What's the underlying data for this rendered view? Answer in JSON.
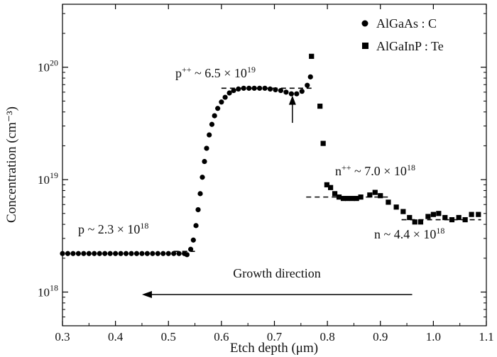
{
  "chart_data": {
    "type": "scatter",
    "title": "",
    "xlabel": "Etch depth (μm)",
    "ylabel": "Concentration (cm⁻³)",
    "xlim": [
      0.3,
      1.1
    ],
    "ylim_log10": [
      17.7,
      20.56
    ],
    "y_scale": "log",
    "grid": false,
    "legend": "top-right",
    "x_ticks": [
      {
        "value": 0.3,
        "label": "0.3"
      },
      {
        "value": 0.4,
        "label": "0.4"
      },
      {
        "value": 0.5,
        "label": "0.5"
      },
      {
        "value": 0.6,
        "label": "0.6"
      },
      {
        "value": 0.7,
        "label": "0.7"
      },
      {
        "value": 0.8,
        "label": "0.8"
      },
      {
        "value": 0.9,
        "label": "0.9"
      },
      {
        "value": 1.0,
        "label": "1.0"
      },
      {
        "value": 1.1,
        "label": "1.1"
      }
    ],
    "y_ticks": [
      {
        "value": 1e+18,
        "base": "10",
        "exp": "18"
      },
      {
        "value": 1e+19,
        "base": "10",
        "exp": "19"
      },
      {
        "value": 1e+20,
        "base": "10",
        "exp": "20"
      }
    ],
    "series": [
      {
        "name": "AlGaAs : C",
        "marker": "circle",
        "points": [
          [
            0.3,
            2.2e+18
          ],
          [
            0.31,
            2.2e+18
          ],
          [
            0.32,
            2.2e+18
          ],
          [
            0.33,
            2.2e+18
          ],
          [
            0.34,
            2.2e+18
          ],
          [
            0.35,
            2.2e+18
          ],
          [
            0.36,
            2.2e+18
          ],
          [
            0.37,
            2.2e+18
          ],
          [
            0.38,
            2.2e+18
          ],
          [
            0.39,
            2.2e+18
          ],
          [
            0.4,
            2.2e+18
          ],
          [
            0.41,
            2.2e+18
          ],
          [
            0.42,
            2.2e+18
          ],
          [
            0.43,
            2.2e+18
          ],
          [
            0.44,
            2.2e+18
          ],
          [
            0.45,
            2.2e+18
          ],
          [
            0.46,
            2.2e+18
          ],
          [
            0.47,
            2.2e+18
          ],
          [
            0.48,
            2.2e+18
          ],
          [
            0.49,
            2.2e+18
          ],
          [
            0.5,
            2.2e+18
          ],
          [
            0.51,
            2.2e+18
          ],
          [
            0.52,
            2.2e+18
          ],
          [
            0.53,
            2.2e+18
          ],
          [
            0.535,
            2.15e+18
          ],
          [
            0.542,
            2.4e+18
          ],
          [
            0.547,
            2.9e+18
          ],
          [
            0.552,
            3.9e+18
          ],
          [
            0.556,
            5.4e+18
          ],
          [
            0.56,
            7.5e+18
          ],
          [
            0.564,
            1.05e+19
          ],
          [
            0.568,
            1.45e+19
          ],
          [
            0.572,
            1.9e+19
          ],
          [
            0.577,
            2.5e+19
          ],
          [
            0.582,
            3.1e+19
          ],
          [
            0.587,
            3.7e+19
          ],
          [
            0.593,
            4.3e+19
          ],
          [
            0.6,
            4.9e+19
          ],
          [
            0.607,
            5.4e+19
          ],
          [
            0.615,
            5.9e+19
          ],
          [
            0.623,
            6.2e+19
          ],
          [
            0.632,
            6.4e+19
          ],
          [
            0.642,
            6.5e+19
          ],
          [
            0.652,
            6.5e+19
          ],
          [
            0.662,
            6.5e+19
          ],
          [
            0.672,
            6.5e+19
          ],
          [
            0.682,
            6.5e+19
          ],
          [
            0.692,
            6.4e+19
          ],
          [
            0.702,
            6.3e+19
          ],
          [
            0.712,
            6.2e+19
          ],
          [
            0.722,
            6e+19
          ],
          [
            0.732,
            5.8e+19
          ],
          [
            0.742,
            5.8e+19
          ],
          [
            0.752,
            6.1e+19
          ],
          [
            0.762,
            6.9e+19
          ],
          [
            0.768,
            8.2e+19
          ]
        ]
      },
      {
        "name": "AlGaInP : Te",
        "marker": "square",
        "points": [
          [
            0.77,
            1.25e+20
          ],
          [
            0.786,
            4.5e+19
          ],
          [
            0.792,
            2.1e+19
          ],
          [
            0.799,
            9e+18
          ],
          [
            0.806,
            8.5e+18
          ],
          [
            0.814,
            7.5e+18
          ],
          [
            0.822,
            7e+18
          ],
          [
            0.83,
            6.8e+18
          ],
          [
            0.838,
            6.8e+18
          ],
          [
            0.847,
            6.8e+18
          ],
          [
            0.855,
            6.8e+18
          ],
          [
            0.863,
            7e+18
          ],
          [
            0.88,
            7.3e+18
          ],
          [
            0.89,
            7.7e+18
          ],
          [
            0.9,
            7.2e+18
          ],
          [
            0.915,
            6.3e+18
          ],
          [
            0.93,
            5.7e+18
          ],
          [
            0.943,
            5.2e+18
          ],
          [
            0.955,
            4.6e+18
          ],
          [
            0.965,
            4.2e+18
          ],
          [
            0.976,
            4.2e+18
          ],
          [
            0.99,
            4.7e+18
          ],
          [
            1.0,
            4.9e+18
          ],
          [
            1.01,
            5e+18
          ],
          [
            1.022,
            4.6e+18
          ],
          [
            1.035,
            4.4e+18
          ],
          [
            1.048,
            4.6e+18
          ],
          [
            1.06,
            4.4e+18
          ],
          [
            1.072,
            4.9e+18
          ],
          [
            1.085,
            4.9e+18
          ]
        ]
      }
    ],
    "reference_lines": [
      {
        "x0": 0.51,
        "x1": 0.55,
        "y": 2.3e+18
      },
      {
        "x0": 0.6,
        "x1": 0.77,
        "y": 6.5e+19
      },
      {
        "x0": 0.76,
        "x1": 0.92,
        "y": 7e+18
      },
      {
        "x0": 0.94,
        "x1": 1.09,
        "y": 4.4e+18
      }
    ],
    "annotations": [
      {
        "id": "p",
        "prefix": "p",
        "sup": "",
        "text": " ~ 2.3 × 10",
        "exp": "18"
      },
      {
        "id": "ppp",
        "prefix": "p",
        "sup": "++",
        "text": " ~ 6.5 × 10",
        "exp": "19"
      },
      {
        "id": "npp",
        "prefix": "n",
        "sup": "++",
        "text": " ~ 7.0 × 10",
        "exp": "18"
      },
      {
        "id": "n",
        "prefix": "n",
        "sup": "",
        "text": " ~ 4.4 × 10",
        "exp": "18"
      }
    ],
    "growth_direction": {
      "label": "Growth direction",
      "from_x": 0.96,
      "to_x": 0.45,
      "y": 9.5e+17
    },
    "marker_arrow": {
      "x": 0.734,
      "from_y": 3.2e+19,
      "to_y": 5.6e+19
    }
  }
}
